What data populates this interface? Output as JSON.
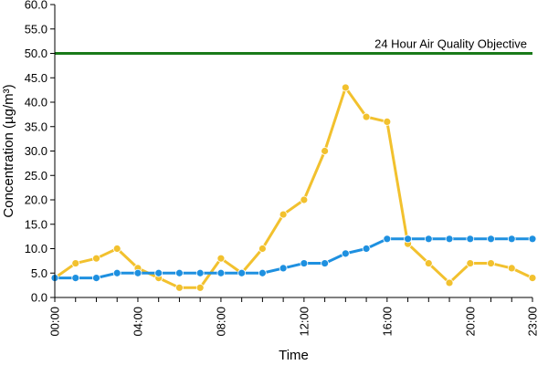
{
  "chart_data": {
    "type": "line",
    "xlabel": "Time",
    "ylabel": "Concentration (µg/m³)",
    "ylim": [
      0,
      60
    ],
    "yticks": [
      "0.0",
      "5.0",
      "10.0",
      "15.0",
      "20.0",
      "25.0",
      "30.0",
      "35.0",
      "40.0",
      "45.0",
      "50.0",
      "55.0",
      "60.0"
    ],
    "x": [
      "00:00",
      "01:00",
      "02:00",
      "03:00",
      "04:00",
      "05:00",
      "06:00",
      "07:00",
      "08:00",
      "09:00",
      "10:00",
      "11:00",
      "12:00",
      "13:00",
      "14:00",
      "15:00",
      "16:00",
      "17:00",
      "18:00",
      "19:00",
      "20:00",
      "21:00",
      "22:00",
      "23:00"
    ],
    "xticks": [
      "00:00",
      "04:00",
      "08:00",
      "12:00",
      "16:00",
      "20:00",
      "23:00"
    ],
    "grid": false,
    "series": [
      {
        "color": "#f2c12e",
        "marker_color": "#f2c12e",
        "values": [
          4,
          7,
          8,
          10,
          6,
          4,
          2,
          2,
          8,
          5,
          10,
          17,
          20,
          30,
          43,
          37,
          36,
          11,
          7,
          3,
          7,
          7,
          6,
          4
        ]
      },
      {
        "color": "#1e90e0",
        "marker_color": "#1e90e0",
        "values": [
          4,
          4,
          4,
          5,
          5,
          5,
          5,
          5,
          5,
          5,
          5,
          6,
          7,
          7,
          9,
          10,
          12,
          12,
          12,
          12,
          12,
          12,
          12,
          12
        ]
      }
    ],
    "threshold": {
      "value": 50,
      "label": "24 Hour Air Quality Objective",
      "color": "#1a7a1a"
    }
  }
}
